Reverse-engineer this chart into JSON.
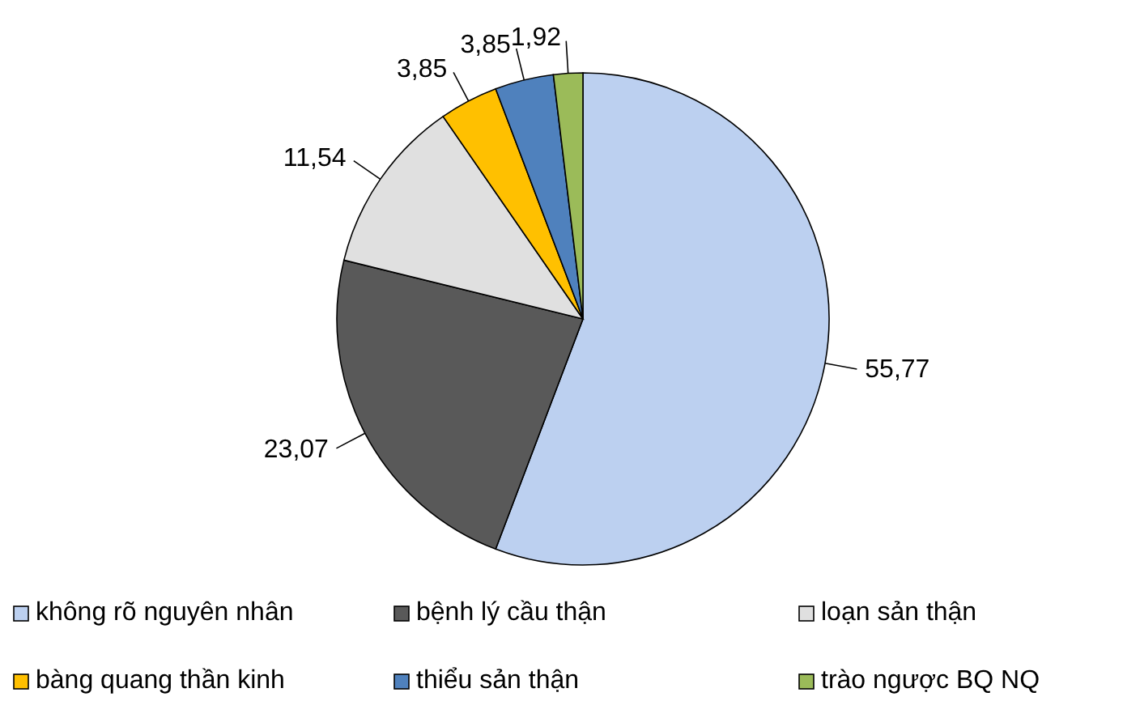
{
  "chart_data": {
    "type": "pie",
    "categories": [
      "không rõ nguyên nhân",
      "bệnh lý cầu thận",
      "loạn sản thận",
      "bàng quang thần kinh",
      "thiểu sản thận",
      "trào ngược BQ  NQ"
    ],
    "values": [
      55.77,
      23.07,
      11.54,
      3.85,
      3.85,
      1.92
    ],
    "value_labels": [
      "55,77",
      "23,07",
      "11,54",
      "3,85",
      "3,85",
      "1,92"
    ],
    "colors": [
      "#bcd0f0",
      "#595959",
      "#e0e0e0",
      "#ffc000",
      "#4f81bd",
      "#9bbb59"
    ],
    "legend": "bottom"
  }
}
